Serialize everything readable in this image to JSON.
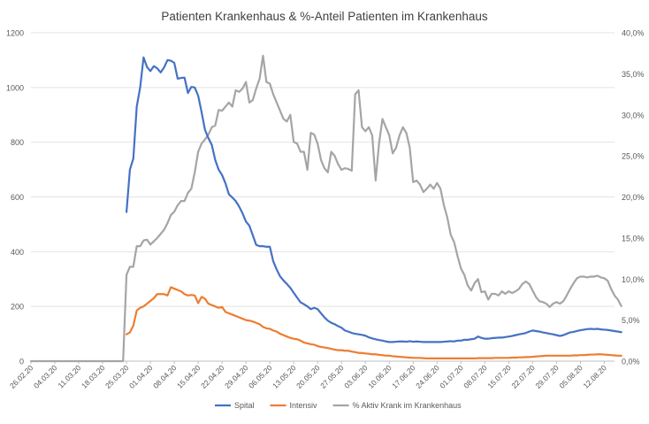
{
  "chart_data": {
    "type": "line",
    "title": "Patienten Krankenhaus & %-Anteil Patienten im Krankenhaus",
    "x_tick_labels": [
      "26.02.20",
      "04.03.20",
      "11.03.20",
      "18.03.20",
      "25.03.20",
      "01.04.20",
      "08.04.20",
      "15.04.20",
      "22.04.20",
      "29.04.20",
      "06.05.20",
      "13.05.20",
      "20.05.20",
      "27.05.20",
      "03.06.20",
      "10.06.20",
      "17.06.20",
      "24.06.20",
      "01.07.20",
      "08.07.20",
      "15.07.20",
      "22.07.20",
      "29.07.20",
      "05.08.20",
      "12.08.20"
    ],
    "y_left_ticks": [
      "0",
      "200",
      "400",
      "600",
      "800",
      "1000",
      "1200"
    ],
    "y_right_ticks": [
      "0,0%",
      "5,0%",
      "10,0%",
      "15,0%",
      "20,0%",
      "25,0%",
      "30,0%",
      "35,0%",
      "40,0%"
    ],
    "ylim_left": [
      0,
      1200
    ],
    "ylim_right": [
      0,
      40
    ],
    "legend_position": "bottom",
    "grid": "horizontal",
    "series": [
      {
        "name": "Spital",
        "axis": "left",
        "color": "#4472C4",
        "start_day": 28,
        "values": [
          545,
          700,
          740,
          930,
          1000,
          1110,
          1075,
          1060,
          1078,
          1070,
          1055,
          1073,
          1100,
          1098,
          1090,
          1032,
          1035,
          1036,
          980,
          1002,
          1000,
          970,
          910,
          845,
          815,
          790,
          735,
          700,
          680,
          650,
          610,
          598,
          585,
          565,
          540,
          510,
          495,
          460,
          425,
          420,
          420,
          418,
          418,
          365,
          335,
          310,
          295,
          282,
          268,
          250,
          232,
          215,
          208,
          200,
          190,
          195,
          190,
          175,
          160,
          148,
          140,
          135,
          128,
          122,
          112,
          108,
          103,
          100,
          98,
          96,
          93,
          87,
          83,
          80,
          77,
          75,
          72,
          70,
          70,
          71,
          72,
          72,
          71,
          73,
          71,
          72,
          71,
          70,
          70,
          70,
          70,
          70,
          70,
          71,
          72,
          73,
          72,
          75,
          75,
          78,
          78,
          80,
          82,
          90,
          85,
          82,
          82,
          84,
          85,
          86,
          86,
          88,
          90,
          92,
          95,
          98,
          100,
          103,
          108,
          112,
          110,
          108,
          105,
          103,
          100,
          98,
          95,
          92,
          95,
          100,
          105,
          107,
          110,
          113,
          115,
          117,
          118,
          117,
          118,
          116,
          115,
          114,
          112,
          110,
          108,
          106
        ]
      },
      {
        "name": "Intensiv",
        "axis": "left",
        "color": "#ED7D31",
        "start_day": 28,
        "values": [
          98,
          105,
          130,
          185,
          195,
          200,
          210,
          220,
          230,
          245,
          245,
          245,
          240,
          270,
          265,
          260,
          255,
          245,
          240,
          242,
          240,
          212,
          235,
          228,
          210,
          205,
          200,
          195,
          198,
          180,
          175,
          170,
          165,
          160,
          155,
          150,
          148,
          145,
          140,
          135,
          125,
          120,
          118,
          112,
          108,
          100,
          95,
          90,
          85,
          82,
          80,
          75,
          68,
          65,
          62,
          60,
          55,
          52,
          50,
          48,
          45,
          42,
          40,
          40,
          38,
          38,
          35,
          33,
          30,
          30,
          28,
          27,
          25,
          25,
          23,
          22,
          20,
          20,
          18,
          17,
          16,
          15,
          14,
          13,
          12,
          12,
          12,
          11,
          10,
          10,
          10,
          10,
          10,
          10,
          10,
          10,
          10,
          10,
          10,
          10,
          10,
          10,
          10,
          11,
          11,
          11,
          11,
          11,
          12,
          12,
          12,
          12,
          12,
          13,
          13,
          14,
          14,
          15,
          15,
          16,
          17,
          18,
          19,
          20,
          20,
          20,
          20,
          20,
          20,
          20,
          20,
          21,
          21,
          22,
          22,
          23,
          24,
          24,
          25,
          25,
          24,
          23,
          22,
          21,
          20,
          20
        ]
      },
      {
        "name": "% Aktiv Krank im Krankenhaus",
        "axis": "right",
        "color": "#A5A5A5",
        "start_day": 0,
        "values": [
          0,
          0,
          0,
          0,
          0,
          0,
          0,
          0,
          0,
          0,
          0,
          0,
          0,
          0,
          0,
          0,
          0,
          0,
          0,
          0,
          0,
          0,
          0,
          0,
          0,
          0,
          0,
          0,
          10.5,
          11.5,
          11.5,
          14,
          14,
          14.7,
          14.8,
          14.2,
          14.6,
          15,
          15.5,
          16,
          16.8,
          17.8,
          18.2,
          19,
          19.5,
          19.5,
          20.5,
          21,
          23,
          25.5,
          26.5,
          27,
          27.6,
          28.5,
          28.7,
          30.6,
          30.5,
          31,
          31.5,
          31,
          33,
          32.8,
          33.2,
          34,
          31.5,
          31.8,
          33.2,
          34.4,
          37.2,
          34,
          33.8,
          32.5,
          31.5,
          30.5,
          29.5,
          29.2,
          30,
          26.7,
          26.5,
          25.5,
          25.5,
          23.3,
          27.8,
          27.6,
          26.5,
          24.5,
          23.5,
          23,
          25.5,
          25,
          24,
          23.3,
          23.5,
          23.4,
          23.2,
          32.5,
          33,
          28.5,
          28,
          28.5,
          27.5,
          22,
          26.5,
          29.5,
          28.5,
          27.5,
          25.3,
          26,
          27.5,
          28.5,
          27.8,
          26,
          21.8,
          22,
          21.5,
          20.6,
          21,
          21.5,
          21,
          21.7,
          21,
          19,
          17.5,
          15.4,
          14.5,
          12.8,
          11.3,
          10.5,
          9.2,
          8.6,
          9.5,
          10,
          8.4,
          8.5,
          7.5,
          8.2,
          8.2,
          8,
          8.5,
          8.2,
          8.5,
          8.3,
          8.5,
          8.8,
          9.4,
          9.7,
          9.4,
          8.6,
          7.8,
          7.3,
          7.2,
          7,
          6.6,
          7,
          7.2,
          7,
          7.3,
          8,
          8.8,
          9.5,
          10.1,
          10.3,
          10.3,
          10.2,
          10.3,
          10.3,
          10.4,
          10.2,
          10.1,
          9.8,
          8.8,
          8,
          7.5,
          6.7
        ]
      }
    ]
  }
}
